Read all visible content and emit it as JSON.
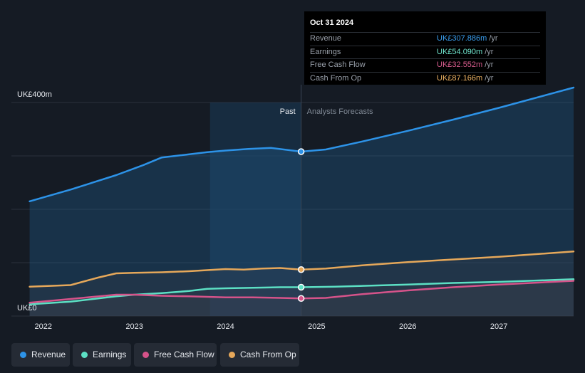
{
  "tooltip": {
    "date": "Oct 31 2024",
    "rows": [
      {
        "label": "Revenue",
        "value": "UK£307.886m",
        "unit": "/yr",
        "color": "#3a9ff0"
      },
      {
        "label": "Earnings",
        "value": "UK£54.090m",
        "unit": "/yr",
        "color": "#6fe3cc"
      },
      {
        "label": "Free Cash Flow",
        "value": "UK£32.552m",
        "unit": "/yr",
        "color": "#d95d8e"
      },
      {
        "label": "Cash From Op",
        "value": "UK£87.166m",
        "unit": "/yr",
        "color": "#e9b062"
      }
    ]
  },
  "legend": [
    {
      "label": "Revenue",
      "color": "#2d93e8"
    },
    {
      "label": "Earnings",
      "color": "#5ce0c4"
    },
    {
      "label": "Free Cash Flow",
      "color": "#d6538a"
    },
    {
      "label": "Cash From Op",
      "color": "#e6a85a"
    }
  ],
  "chart_data": {
    "type": "area",
    "y_top_label": "UK£400m",
    "y_bottom_label": "UK£0",
    "past_label": "Past",
    "forecast_label": "Analysts Forecasts",
    "x_ticks": [
      "2022",
      "2023",
      "2024",
      "2025",
      "2026",
      "2027"
    ],
    "ylim": [
      0,
      400
    ],
    "xlim": [
      2021.65,
      2027.82
    ],
    "divider_x": 2024.83,
    "highlight_start_x": 2023.83,
    "series": [
      {
        "name": "Revenue",
        "color": "#2d93e8",
        "x": [
          2021.85,
          2022.3,
          2022.8,
          2023.1,
          2023.3,
          2023.5,
          2023.8,
          2024.0,
          2024.25,
          2024.5,
          2024.83,
          2025.1,
          2025.5,
          2026.0,
          2026.5,
          2027.0,
          2027.82
        ],
        "y": [
          215,
          237,
          264,
          283,
          297,
          301,
          307,
          310,
          313,
          315,
          308,
          312,
          327,
          347,
          368,
          390,
          428
        ]
      },
      {
        "name": "Cash From Op",
        "color": "#e6a85a",
        "x": [
          2021.85,
          2022.3,
          2022.6,
          2022.8,
          2023.0,
          2023.3,
          2023.6,
          2023.8,
          2024.0,
          2024.2,
          2024.4,
          2024.6,
          2024.83,
          2025.1,
          2025.5,
          2026.0,
          2026.5,
          2027.0,
          2027.82
        ],
        "y": [
          55,
          58,
          72,
          80,
          81,
          82,
          84,
          86,
          88,
          87,
          89,
          90,
          87,
          89,
          95,
          101,
          106,
          111,
          121
        ]
      },
      {
        "name": "Earnings",
        "color": "#5ce0c4",
        "x": [
          2021.85,
          2022.3,
          2022.8,
          2023.0,
          2023.3,
          2023.6,
          2023.8,
          2024.0,
          2024.3,
          2024.6,
          2024.83,
          2025.2,
          2025.6,
          2026.0,
          2026.5,
          2027.0,
          2027.82
        ],
        "y": [
          22,
          27,
          37,
          40,
          43,
          47,
          51,
          52,
          53,
          54,
          54,
          55,
          57,
          59,
          62,
          64,
          69
        ]
      },
      {
        "name": "Free Cash Flow",
        "color": "#d6538a",
        "x": [
          2021.85,
          2022.3,
          2022.8,
          2023.0,
          2023.3,
          2023.6,
          2023.8,
          2024.0,
          2024.3,
          2024.6,
          2024.83,
          2025.1,
          2025.5,
          2026.0,
          2026.5,
          2027.0,
          2027.82
        ],
        "y": [
          25,
          32,
          40,
          40,
          38,
          37,
          36,
          35,
          35,
          34,
          33,
          34,
          41,
          48,
          54,
          59,
          66
        ]
      }
    ],
    "markers": [
      {
        "series": "Revenue",
        "x": 2024.83,
        "y": 308
      },
      {
        "series": "Cash From Op",
        "x": 2024.83,
        "y": 87
      },
      {
        "series": "Earnings",
        "x": 2024.83,
        "y": 54
      },
      {
        "series": "Free Cash Flow",
        "x": 2024.83,
        "y": 33
      }
    ]
  }
}
